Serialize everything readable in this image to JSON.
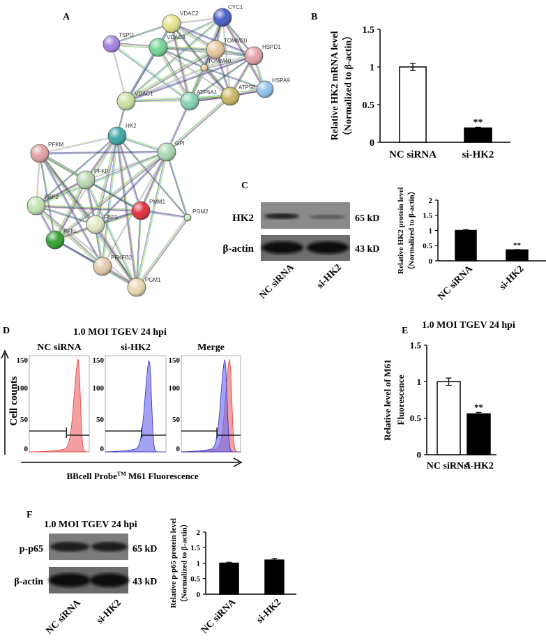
{
  "panels": {
    "A": "A",
    "B": "B",
    "C": "C",
    "D": "D",
    "E": "E",
    "F": "F"
  },
  "blot_c": {
    "rows": [
      "HK2",
      "β-actin"
    ],
    "sizes": [
      "65 kD",
      "43 kD"
    ],
    "lanes": [
      "NC siRNA",
      "si-HK2"
    ]
  },
  "flow_d": {
    "title": "1.0 MOI TGEV 24 hpi",
    "ylabel": "Cell  counts",
    "xlabel": "BBcell Probe",
    "xlabel_sup": "TM",
    "xlabel_end": " M61 Fluorescence",
    "subplots": [
      "NC siRNA",
      "si-HK2",
      "Merge"
    ],
    "yticks": [
      "150",
      "100",
      "50",
      "0"
    ],
    "colors": {
      "nc": "#f08080",
      "si": "#7070f0"
    }
  },
  "blot_f": {
    "title": "1.0 MOI TGEV 24 hpi",
    "rows": [
      "p-p65",
      "β-actin"
    ],
    "sizes": [
      "65 kD",
      "43 kD"
    ],
    "lanes": [
      "NC siRNA",
      "si-HK2"
    ]
  },
  "chart_data": [
    {
      "type": "network",
      "nodes": [
        {
          "name": "CYC1",
          "color": "#4a5ec4"
        },
        {
          "name": "VDAC2",
          "color": "#e4e48c"
        },
        {
          "name": "TSPO",
          "color": "#a482e2"
        },
        {
          "name": "VDAC3",
          "color": "#72d494"
        },
        {
          "name": "TOMM20",
          "color": "#e8c89c"
        },
        {
          "name": "HSPD1",
          "color": "#e2a2aa"
        },
        {
          "name": "TOMM40",
          "color": "#ecc8a0"
        },
        {
          "name": "HSPA9",
          "color": "#92c2ea"
        },
        {
          "name": "VDAC1",
          "color": "#cce2a2"
        },
        {
          "name": "ATP5A1",
          "color": "#84d4b4"
        },
        {
          "name": "ATP5B",
          "color": "#c8b864"
        },
        {
          "name": "HK2",
          "color": "#3fa8a8"
        },
        {
          "name": "PFKM",
          "color": "#e2a2a2"
        },
        {
          "name": "GPI",
          "color": "#aad8b2"
        },
        {
          "name": "PFKP",
          "color": "#bad8b2"
        },
        {
          "name": "FBP2",
          "color": "#c2e2b2"
        },
        {
          "name": "PMM1",
          "color": "#e0303e"
        },
        {
          "name": "PGM2",
          "color": "#c2e8b2"
        },
        {
          "name": "FBP1",
          "color": "#e2e8c2"
        },
        {
          "name": "PFKL",
          "color": "#32a232"
        },
        {
          "name": "PFKFB2",
          "color": "#e2caaa"
        },
        {
          "name": "PGM1",
          "color": "#eadab2"
        }
      ],
      "edges": [
        [
          "CYC1",
          "VDAC2"
        ],
        [
          "CYC1",
          "VDAC3"
        ],
        [
          "CYC1",
          "TOMM20"
        ],
        [
          "CYC1",
          "HSPD1"
        ],
        [
          "CYC1",
          "TOMM40"
        ],
        [
          "CYC1",
          "ATP5A1"
        ],
        [
          "CYC1",
          "ATP5B"
        ],
        [
          "CYC1",
          "VDAC1"
        ],
        [
          "CYC1",
          "HSPA9"
        ],
        [
          "VDAC2",
          "TSPO"
        ],
        [
          "VDAC2",
          "VDAC3"
        ],
        [
          "VDAC2",
          "TOMM20"
        ],
        [
          "VDAC2",
          "TOMM40"
        ],
        [
          "VDAC2",
          "VDAC1"
        ],
        [
          "VDAC2",
          "ATP5A1"
        ],
        [
          "VDAC2",
          "ATP5B"
        ],
        [
          "VDAC2",
          "HSPD1"
        ],
        [
          "TSPO",
          "VDAC3"
        ],
        [
          "TSPO",
          "VDAC1"
        ],
        [
          "TSPO",
          "ATP5A1"
        ],
        [
          "VDAC3",
          "TOMM20"
        ],
        [
          "VDAC3",
          "TOMM40"
        ],
        [
          "VDAC3",
          "VDAC1"
        ],
        [
          "VDAC3",
          "ATP5A1"
        ],
        [
          "VDAC3",
          "ATP5B"
        ],
        [
          "VDAC3",
          "HSPD1"
        ],
        [
          "TOMM20",
          "TOMM40"
        ],
        [
          "TOMM20",
          "HSPD1"
        ],
        [
          "TOMM20",
          "ATP5B"
        ],
        [
          "TOMM20",
          "VDAC1"
        ],
        [
          "TOMM20",
          "ATP5A1"
        ],
        [
          "HSPD1",
          "HSPA9"
        ],
        [
          "HSPD1",
          "ATP5B"
        ],
        [
          "HSPD1",
          "ATP5A1"
        ],
        [
          "HSPD1",
          "VDAC1"
        ],
        [
          "HSPD1",
          "TOMM40"
        ],
        [
          "TOMM40",
          "VDAC1"
        ],
        [
          "TOMM40",
          "ATP5A1"
        ],
        [
          "TOMM40",
          "ATP5B"
        ],
        [
          "TOMM40",
          "HSPA9"
        ],
        [
          "HSPA9",
          "ATP5B"
        ],
        [
          "HSPA9",
          "ATP5A1"
        ],
        [
          "VDAC1",
          "ATP5A1"
        ],
        [
          "VDAC1",
          "ATP5B"
        ],
        [
          "ATP5A1",
          "ATP5B"
        ],
        [
          "VDAC1",
          "HK2"
        ],
        [
          "ATP5A1",
          "GPI"
        ],
        [
          "ATP5B",
          "GPI"
        ],
        [
          "HK2",
          "PFKM"
        ],
        [
          "HK2",
          "GPI"
        ],
        [
          "HK2",
          "PFKP"
        ],
        [
          "HK2",
          "FBP2"
        ],
        [
          "HK2",
          "PMM1"
        ],
        [
          "HK2",
          "FBP1"
        ],
        [
          "HK2",
          "PFKL"
        ],
        [
          "HK2",
          "PFKFB2"
        ],
        [
          "HK2",
          "PGM1"
        ],
        [
          "HK2",
          "PGM2"
        ],
        [
          "PFKM",
          "GPI"
        ],
        [
          "PFKM",
          "PFKP"
        ],
        [
          "PFKM",
          "FBP2"
        ],
        [
          "PFKM",
          "PMM1"
        ],
        [
          "PFKM",
          "FBP1"
        ],
        [
          "PFKM",
          "PFKL"
        ],
        [
          "PFKM",
          "PFKFB2"
        ],
        [
          "PFKM",
          "PGM1"
        ],
        [
          "GPI",
          "PFKP"
        ],
        [
          "GPI",
          "FBP2"
        ],
        [
          "GPI",
          "PMM1"
        ],
        [
          "GPI",
          "PGM2"
        ],
        [
          "GPI",
          "FBP1"
        ],
        [
          "GPI",
          "PFKL"
        ],
        [
          "GPI",
          "PFKFB2"
        ],
        [
          "GPI",
          "PGM1"
        ],
        [
          "PFKP",
          "FBP2"
        ],
        [
          "PFKP",
          "PMM1"
        ],
        [
          "PFKP",
          "FBP1"
        ],
        [
          "PFKP",
          "PFKL"
        ],
        [
          "PFKP",
          "PFKFB2"
        ],
        [
          "PFKP",
          "PGM1"
        ],
        [
          "FBP2",
          "PMM1"
        ],
        [
          "FBP2",
          "FBP1"
        ],
        [
          "FBP2",
          "PFKL"
        ],
        [
          "FBP2",
          "PFKFB2"
        ],
        [
          "FBP2",
          "PGM1"
        ],
        [
          "PMM1",
          "FBP1"
        ],
        [
          "PMM1",
          "PFKL"
        ],
        [
          "PMM1",
          "PGM1"
        ],
        [
          "PMM1",
          "PGM2"
        ],
        [
          "PGM2",
          "PGM1"
        ],
        [
          "FBP1",
          "PFKL"
        ],
        [
          "FBP1",
          "PFKFB2"
        ],
        [
          "FBP1",
          "PGM1"
        ],
        [
          "PFKL",
          "PFKFB2"
        ],
        [
          "PFKL",
          "PGM1"
        ],
        [
          "PFKFB2",
          "PGM1"
        ]
      ]
    },
    {
      "type": "bar",
      "panel": "B",
      "categories": [
        "NC siRNA",
        "si-HK2"
      ],
      "values": [
        1.0,
        0.19
      ],
      "errors": [
        0.05,
        0.01
      ],
      "fills": [
        "#ffffff",
        "#000000"
      ],
      "annotations": [
        "",
        "**"
      ],
      "ylabel": "Relative HK2 mRNA  level",
      "ylabel2": "（Normalized  to β-actin）",
      "ylim": [
        0,
        1.5
      ],
      "yticks": [
        "0",
        "0.5",
        "1",
        "1.5"
      ],
      "ytick_values": [
        0,
        0.5,
        1,
        1.5
      ]
    },
    {
      "type": "bar",
      "panel": "C",
      "categories": [
        "NC siRNA",
        "si-HK2"
      ],
      "values": [
        1.0,
        0.36
      ],
      "errors": [
        0.03,
        0.01
      ],
      "fills": [
        "#000000",
        "#000000"
      ],
      "annotations": [
        "",
        "**"
      ],
      "ylabel": "Relative HK2 protein level",
      "ylabel2": "（Normalized  to β-actin）",
      "ylim": [
        0,
        2
      ],
      "yticks": [
        "0",
        "0.5",
        "1",
        "1.5",
        "2"
      ],
      "ytick_values": [
        0,
        0.5,
        1,
        1.5,
        2
      ]
    },
    {
      "type": "bar",
      "panel": "E",
      "title": "1.0 MOI TGEV 24 hpi",
      "categories": [
        "NC siRNA",
        "si-HK2"
      ],
      "values": [
        1.0,
        0.56
      ],
      "errors": [
        0.05,
        0.02
      ],
      "fills": [
        "#ffffff",
        "#000000"
      ],
      "annotations": [
        "",
        "**"
      ],
      "ylabel": "Relative level of  M61",
      "ylabel2": "Fluorescence",
      "ylim": [
        0,
        1.5
      ],
      "yticks": [
        "0",
        "0.5",
        "1",
        "1.5"
      ],
      "ytick_values": [
        0,
        0.5,
        1,
        1.5
      ]
    },
    {
      "type": "bar",
      "panel": "F",
      "categories": [
        "NC siRNA",
        "si-HK2"
      ],
      "values": [
        1.0,
        1.1
      ],
      "errors": [
        0.03,
        0.05
      ],
      "fills": [
        "#000000",
        "#000000"
      ],
      "annotations": [
        "",
        ""
      ],
      "ylabel": "Relative p-p65 protein level",
      "ylabel2": "（Normalized  to β-actin）",
      "ylim": [
        0,
        2
      ],
      "yticks": [
        "0",
        "0.5",
        "1",
        "1.5",
        "2"
      ],
      "ytick_values": [
        0,
        0.5,
        1,
        1.5,
        2
      ]
    }
  ]
}
